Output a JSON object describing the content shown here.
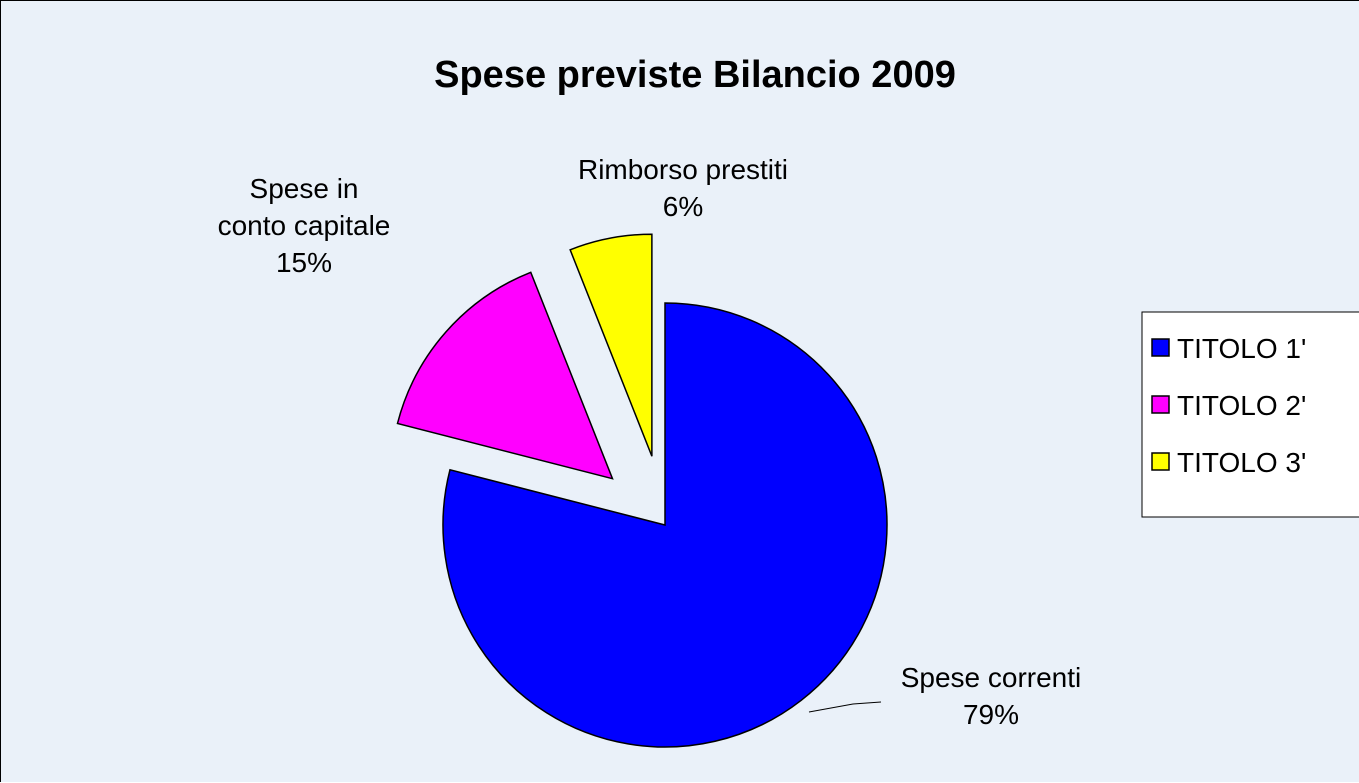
{
  "chart_data": {
    "type": "pie",
    "title": "Spese previste Bilancio 2009",
    "slices": [
      {
        "legend": "TITOLO 1'",
        "label_lines": [
          "Spese correnti",
          "79%"
        ],
        "value": 79,
        "color": "#0000ff",
        "exploded": false
      },
      {
        "legend": "TITOLO 2'",
        "label_lines": [
          "Spese in",
          "conto capitale",
          "15%"
        ],
        "value": 15,
        "color": "#ff00ff",
        "exploded": true
      },
      {
        "legend": "TITOLO 3'",
        "label_lines": [
          "Rimborso prestiti",
          "6%"
        ],
        "value": 6,
        "color": "#ffff00",
        "exploded": true
      }
    ],
    "legend_position": "right",
    "background": "#eaf1f9"
  }
}
